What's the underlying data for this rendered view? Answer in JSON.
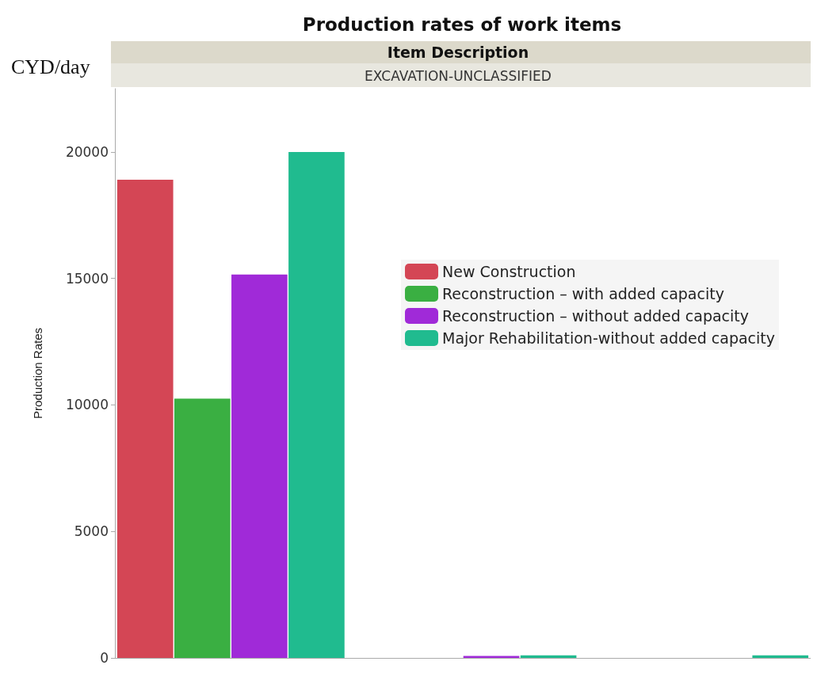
{
  "chart_data": {
    "type": "bar",
    "title": "Production rates of work items",
    "subtitle": "EXCAVATION-UNCLASSIFIED",
    "ylabel": "Production Rates",
    "annotations": [
      "Item Description",
      "CYD/day"
    ],
    "categories": [
      null,
      null,
      null
    ],
    "series": [
      {
        "name": "New Construction",
        "color": "#d44655",
        "values": [
          18900,
          null,
          null
        ]
      },
      {
        "name": "Reconstruction – with added capacity",
        "color": "#3aaf42",
        "values": [
          10250,
          null,
          null
        ]
      },
      {
        "name": "Reconstruction – without added capacity",
        "color": "#a02ad8",
        "values": [
          15150,
          80,
          null
        ]
      },
      {
        "name": "Major Rehabilitation-without added capacity",
        "color": "#20bb8f",
        "values": [
          20000,
          100,
          100
        ]
      }
    ],
    "ylim": [
      0,
      22500
    ],
    "yticks": [
      0,
      5000,
      10000,
      15000,
      20000
    ],
    "grid": false,
    "legend": "right"
  }
}
